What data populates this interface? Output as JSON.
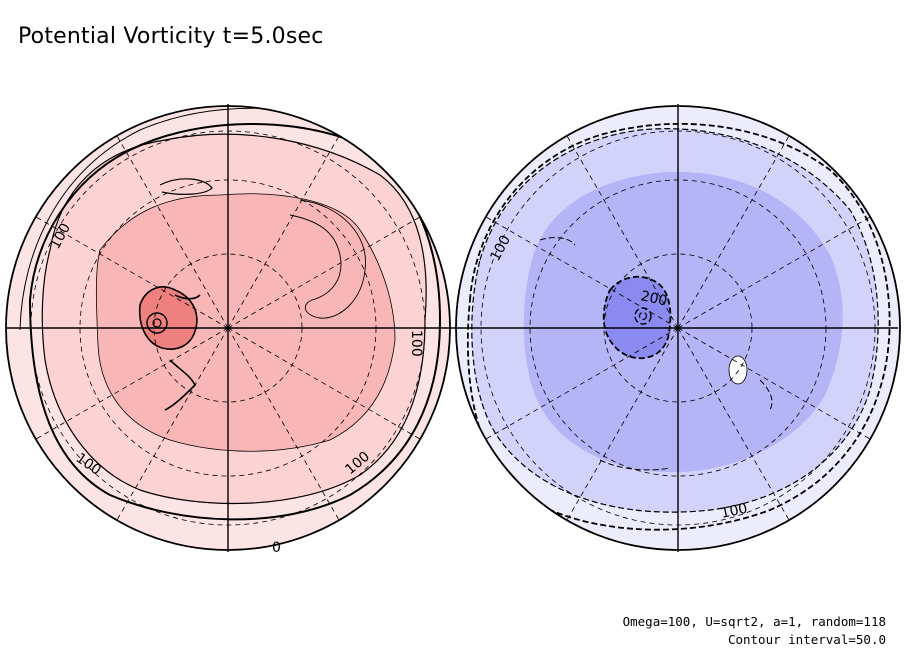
{
  "title": "Potential Vorticity t=5.0sec",
  "footer": {
    "params": "Omega=100, U=sqrt2, a=1, random=118",
    "contour": "Contour interval=50.0"
  },
  "colors": {
    "north_outer": "#fde4e4",
    "north_mid": "#fcd2d2",
    "north_inner": "#f9b6b6",
    "north_core": "#ee8080",
    "south_outer": "#ececfc",
    "south_mid": "#d2d2fb",
    "south_inner": "#b4b4f7",
    "south_core": "#8a8af0"
  },
  "hemispheres": [
    {
      "id": "north",
      "labels": [
        "100",
        "100",
        "100",
        "100",
        "0"
      ]
    },
    {
      "id": "south",
      "labels": [
        "100",
        "200",
        "100"
      ]
    }
  ]
}
